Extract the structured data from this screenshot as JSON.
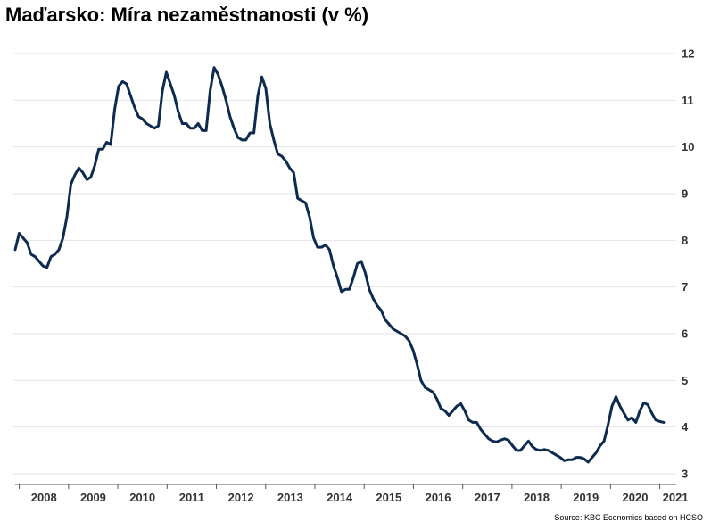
{
  "title": "Maďarsko: Míra nezaměstnanosti (v %)",
  "source": "Source: KBC Economics based on HCSO",
  "chart_data": {
    "type": "line",
    "title": "Maďarsko: Míra nezaměstnanosti (v %)",
    "xlabel": "",
    "ylabel": "",
    "ylim": [
      3,
      12
    ],
    "yticks": [
      "3",
      "4",
      "5",
      "6",
      "7",
      "8",
      "9",
      "10",
      "11",
      "12"
    ],
    "xticks": [
      "2008",
      "2009",
      "2010",
      "2011",
      "2012",
      "2013",
      "2014",
      "2015",
      "2016",
      "2017",
      "2018",
      "2019",
      "2020",
      "2021"
    ],
    "x_start": "2007-12",
    "x_end": "2021-05",
    "frequency": "monthly",
    "grid": true,
    "y_axis_position": "right",
    "line_color": "#0d2b4f",
    "series": [
      {
        "values": [
          7.8,
          8.15,
          8.05,
          7.95,
          7.7,
          7.65,
          7.55,
          7.45,
          7.42,
          7.65,
          7.7,
          7.8,
          8.05,
          8.5,
          9.2,
          9.4,
          9.55,
          9.45,
          9.3,
          9.35,
          9.6,
          9.95,
          9.95,
          10.1,
          10.05,
          10.8,
          11.3,
          11.4,
          11.35,
          11.1,
          10.85,
          10.65,
          10.6,
          10.5,
          10.45,
          10.4,
          10.45,
          11.2,
          11.6,
          11.35,
          11.1,
          10.75,
          10.5,
          10.5,
          10.4,
          10.4,
          10.5,
          10.35,
          10.35,
          11.2,
          11.7,
          11.55,
          11.3,
          11.0,
          10.65,
          10.4,
          10.2,
          10.15,
          10.15,
          10.3,
          10.3,
          11.1,
          11.5,
          11.25,
          10.5,
          10.15,
          9.85,
          9.8,
          9.7,
          9.55,
          9.45,
          8.9,
          8.85,
          8.8,
          8.5,
          8.05,
          7.85,
          7.85,
          7.9,
          7.8,
          7.45,
          7.2,
          6.9,
          6.95,
          6.95,
          7.2,
          7.5,
          7.55,
          7.3,
          6.95,
          6.75,
          6.6,
          6.5,
          6.3,
          6.2,
          6.1,
          6.05,
          6.0,
          5.95,
          5.85,
          5.65,
          5.35,
          5.0,
          4.85,
          4.8,
          4.75,
          4.6,
          4.4,
          4.35,
          4.25,
          4.35,
          4.45,
          4.5,
          4.35,
          4.15,
          4.1,
          4.1,
          3.95,
          3.85,
          3.75,
          3.7,
          3.68,
          3.72,
          3.75,
          3.72,
          3.6,
          3.5,
          3.5,
          3.6,
          3.7,
          3.58,
          3.52,
          3.5,
          3.52,
          3.5,
          3.45,
          3.4,
          3.35,
          3.28,
          3.3,
          3.3,
          3.35,
          3.35,
          3.32,
          3.25,
          3.35,
          3.45,
          3.6,
          3.7,
          4.05,
          4.45,
          4.65,
          4.45,
          4.3,
          4.15,
          4.2,
          4.1,
          4.35,
          4.52,
          4.48,
          4.3,
          4.15,
          4.12,
          4.1
        ]
      }
    ]
  }
}
